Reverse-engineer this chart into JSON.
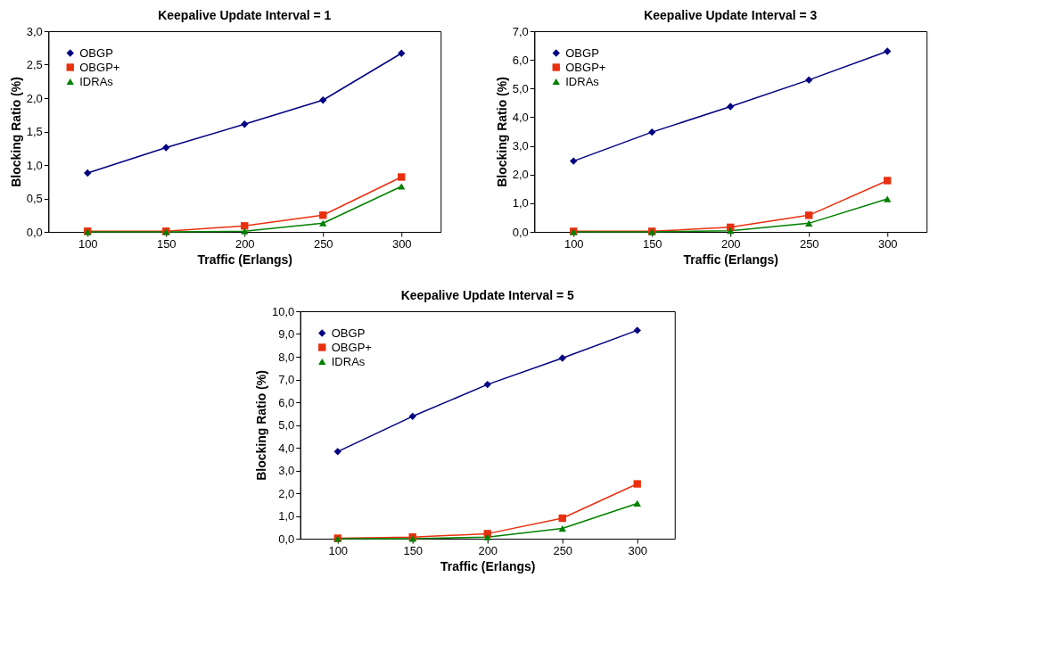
{
  "chart_data": [
    {
      "type": "line",
      "title": "Keepalive Update Interval = 1",
      "xlabel": "Traffic (Erlangs)",
      "ylabel": "Blocking Ratio (%)",
      "categories": [
        "100",
        "150",
        "200",
        "250",
        "300"
      ],
      "ylim": [
        0,
        3
      ],
      "yticks": [
        {
          "value": 0,
          "label": "0,0"
        },
        {
          "value": 0.5,
          "label": "0,5"
        },
        {
          "value": 1,
          "label": "1,0"
        },
        {
          "value": 1.5,
          "label": "1,5"
        },
        {
          "value": 2,
          "label": "2,0"
        },
        {
          "value": 2.5,
          "label": "2,5"
        },
        {
          "value": 3,
          "label": "3,0"
        }
      ],
      "grid": false,
      "legend": "top left",
      "series": [
        {
          "name": "OBGP",
          "color": "#000080",
          "marker": "diamond",
          "values": [
            0.88,
            1.26,
            1.61,
            1.97,
            2.67
          ]
        },
        {
          "name": "OBGP+",
          "color": "#e8300e",
          "marker": "square",
          "values": [
            0.01,
            0.01,
            0.09,
            0.25,
            0.82
          ]
        },
        {
          "name": "IDRAs",
          "color": "#008000",
          "marker": "triangle",
          "values": [
            0,
            0,
            0.01,
            0.13,
            0.68
          ]
        }
      ]
    },
    {
      "type": "line",
      "title": "Keepalive Update Interval = 3",
      "xlabel": "Traffic (Erlangs)",
      "ylabel": "Blocking Ratio (%)",
      "categories": [
        "100",
        "150",
        "200",
        "250",
        "300"
      ],
      "ylim": [
        0,
        7
      ],
      "yticks": [
        {
          "value": 0,
          "label": "0,0"
        },
        {
          "value": 1,
          "label": "1,0"
        },
        {
          "value": 2,
          "label": "2,0"
        },
        {
          "value": 3,
          "label": "3,0"
        },
        {
          "value": 4,
          "label": "4,0"
        },
        {
          "value": 5,
          "label": "5,0"
        },
        {
          "value": 6,
          "label": "6,0"
        },
        {
          "value": 7,
          "label": "7,0"
        }
      ],
      "grid": false,
      "legend": "top left",
      "series": [
        {
          "name": "OBGP",
          "color": "#000080",
          "marker": "diamond",
          "values": [
            2.47,
            3.48,
            4.37,
            5.3,
            6.3
          ]
        },
        {
          "name": "OBGP+",
          "color": "#e8300e",
          "marker": "square",
          "values": [
            0.02,
            0.02,
            0.16,
            0.58,
            1.79
          ]
        },
        {
          "name": "IDRAs",
          "color": "#008000",
          "marker": "triangle",
          "values": [
            0,
            0,
            0.04,
            0.3,
            1.15
          ]
        }
      ]
    },
    {
      "type": "line",
      "title": "Keepalive Update Interval = 5",
      "xlabel": "Traffic (Erlangs)",
      "ylabel": "Blocking Ratio (%)",
      "categories": [
        "100",
        "150",
        "200",
        "250",
        "300"
      ],
      "ylim": [
        0,
        10
      ],
      "yticks": [
        {
          "value": 0,
          "label": "0,0"
        },
        {
          "value": 1,
          "label": "1,0"
        },
        {
          "value": 2,
          "label": "2,0"
        },
        {
          "value": 3,
          "label": "3,0"
        },
        {
          "value": 4,
          "label": "4,0"
        },
        {
          "value": 5,
          "label": "5,0"
        },
        {
          "value": 6,
          "label": "6,0"
        },
        {
          "value": 7,
          "label": "7,0"
        },
        {
          "value": 8,
          "label": "8,0"
        },
        {
          "value": 9,
          "label": "9,0"
        },
        {
          "value": 10,
          "label": "10,0"
        }
      ],
      "grid": false,
      "legend": "top left",
      "series": [
        {
          "name": "OBGP",
          "color": "#000080",
          "marker": "diamond",
          "values": [
            3.83,
            5.38,
            6.78,
            7.94,
            9.16
          ]
        },
        {
          "name": "OBGP+",
          "color": "#e8300e",
          "marker": "square",
          "values": [
            0.02,
            0.07,
            0.22,
            0.9,
            2.41
          ]
        },
        {
          "name": "IDRAs",
          "color": "#008000",
          "marker": "triangle",
          "values": [
            0,
            0,
            0.07,
            0.45,
            1.55
          ]
        }
      ]
    }
  ]
}
